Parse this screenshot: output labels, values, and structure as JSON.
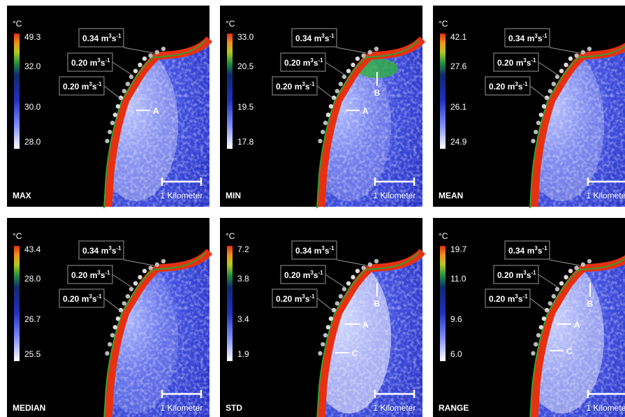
{
  "unit": "°C",
  "scale_bar": "1 Kilometer",
  "flow_labels": [
    [
      "0.34 m",
      "3",
      "s",
      "-1"
    ],
    [
      "0.20 m",
      "3",
      "s",
      "-1"
    ],
    [
      "0.20 m",
      "3",
      "s",
      "-1"
    ]
  ],
  "panels": [
    {
      "label": "MAX",
      "colorbar_ticks": [
        "49.3",
        "32.0",
        "30.0",
        "28.0"
      ],
      "points": [
        "A"
      ]
    },
    {
      "label": "MIN",
      "colorbar_ticks": [
        "33.0",
        "20.5",
        "19.5",
        "17.8"
      ],
      "points": [
        "B",
        "A"
      ]
    },
    {
      "label": "MEAN",
      "colorbar_ticks": [
        "42.1",
        "27.6",
        "26.1",
        "24.9"
      ],
      "points": []
    },
    {
      "label": "MEDIAN",
      "colorbar_ticks": [
        "43.4",
        "28.0",
        "26.7",
        "25.5"
      ],
      "points": []
    },
    {
      "label": "STD",
      "colorbar_ticks": [
        "7.2",
        "3.8",
        "3.4",
        "1.9"
      ],
      "points": [
        "B",
        "A",
        "C"
      ]
    },
    {
      "label": "RANGE",
      "colorbar_ticks": [
        "19.7",
        "11.0",
        "9.6",
        "6.0"
      ],
      "points": [
        "B",
        "A",
        "C"
      ]
    }
  ]
}
